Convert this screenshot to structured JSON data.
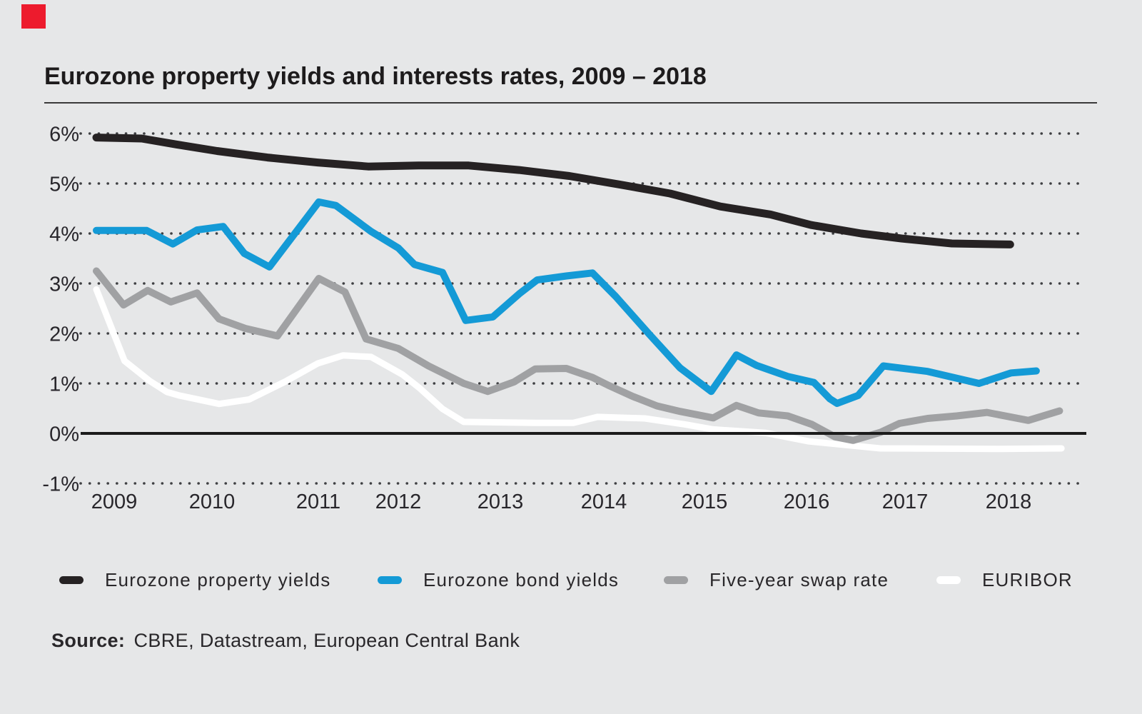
{
  "title": "Eurozone property yields and interests rates, 2009 – 2018",
  "brand": {
    "square_color": "#ed1b2d"
  },
  "source": {
    "label": "Source:",
    "text": "CBRE, Datastream, European Central Bank"
  },
  "chart_data": {
    "type": "line",
    "title": "Eurozone property yields and interests rates, 2009 – 2018",
    "background_color": "#e6e7e8",
    "grid": "horizontal dotted",
    "legend_position": "bottom",
    "ylabel": "",
    "xlabel": "",
    "y_unit": "%",
    "ylim": [
      -1,
      6
    ],
    "xlim": [
      2009,
      2018.6
    ],
    "y_tick_labels": [
      "6%",
      "5%",
      "4%",
      "3%",
      "2%",
      "1%",
      "0%",
      "-1%"
    ],
    "y_tick_values": [
      6,
      5,
      4,
      3,
      2,
      1,
      0,
      -1
    ],
    "zero_axis": true,
    "x_tick_labels": [
      "2009",
      "2010",
      "2011",
      "2012",
      "2013",
      "2014",
      "2015",
      "2016",
      "2017",
      "2018"
    ],
    "series": [
      {
        "name": "Eurozone property yields",
        "key": "property-yields",
        "color": "#262223",
        "stroke_width": 11,
        "points": [
          [
            2009.0,
            5.92
          ],
          [
            2009.45,
            5.9
          ],
          [
            2009.8,
            5.78
          ],
          [
            2010.2,
            5.65
          ],
          [
            2010.7,
            5.52
          ],
          [
            2011.2,
            5.42
          ],
          [
            2011.7,
            5.34
          ],
          [
            2012.2,
            5.36
          ],
          [
            2012.7,
            5.36
          ],
          [
            2013.2,
            5.27
          ],
          [
            2013.7,
            5.15
          ],
          [
            2014.2,
            4.98
          ],
          [
            2014.7,
            4.8
          ],
          [
            2015.2,
            4.54
          ],
          [
            2015.7,
            4.38
          ],
          [
            2016.1,
            4.17
          ],
          [
            2016.6,
            4.0
          ],
          [
            2017.0,
            3.9
          ],
          [
            2017.5,
            3.8
          ],
          [
            2018.08,
            3.78
          ]
        ]
      },
      {
        "name": "Eurozone bond yields",
        "key": "bond-yields",
        "color": "#149ad6",
        "stroke_width": 10,
        "points": [
          [
            2009.0,
            4.06
          ],
          [
            2009.5,
            4.06
          ],
          [
            2009.76,
            3.79
          ],
          [
            2010.0,
            4.07
          ],
          [
            2010.26,
            4.14
          ],
          [
            2010.47,
            3.6
          ],
          [
            2010.72,
            3.33
          ],
          [
            2011.21,
            4.63
          ],
          [
            2011.38,
            4.56
          ],
          [
            2011.73,
            4.04
          ],
          [
            2012.0,
            3.71
          ],
          [
            2012.16,
            3.38
          ],
          [
            2012.44,
            3.22
          ],
          [
            2012.67,
            2.26
          ],
          [
            2012.94,
            2.33
          ],
          [
            2013.2,
            2.79
          ],
          [
            2013.38,
            3.07
          ],
          [
            2013.67,
            3.15
          ],
          [
            2013.93,
            3.21
          ],
          [
            2014.16,
            2.74
          ],
          [
            2014.5,
            1.97
          ],
          [
            2014.8,
            1.31
          ],
          [
            2015.11,
            0.84
          ],
          [
            2015.36,
            1.57
          ],
          [
            2015.56,
            1.36
          ],
          [
            2015.87,
            1.14
          ],
          [
            2016.13,
            1.02
          ],
          [
            2016.29,
            0.69
          ],
          [
            2016.36,
            0.6
          ],
          [
            2016.57,
            0.76
          ],
          [
            2016.82,
            1.35
          ],
          [
            2017.26,
            1.24
          ],
          [
            2017.77,
            1.0
          ],
          [
            2018.09,
            1.21
          ],
          [
            2018.34,
            1.25
          ]
        ]
      },
      {
        "name": "Five-year swap rate",
        "key": "swap-rate",
        "color": "#a0a1a3",
        "stroke_width": 10,
        "points": [
          [
            2009.0,
            3.25
          ],
          [
            2009.27,
            2.57
          ],
          [
            2009.51,
            2.86
          ],
          [
            2009.74,
            2.63
          ],
          [
            2010.0,
            2.81
          ],
          [
            2010.22,
            2.29
          ],
          [
            2010.48,
            2.1
          ],
          [
            2010.8,
            1.95
          ],
          [
            2011.21,
            3.1
          ],
          [
            2011.47,
            2.83
          ],
          [
            2011.68,
            1.89
          ],
          [
            2012.0,
            1.7
          ],
          [
            2012.3,
            1.35
          ],
          [
            2012.65,
            1.0
          ],
          [
            2012.89,
            0.84
          ],
          [
            2013.15,
            1.03
          ],
          [
            2013.36,
            1.29
          ],
          [
            2013.67,
            1.3
          ],
          [
            2013.93,
            1.12
          ],
          [
            2014.09,
            0.96
          ],
          [
            2014.33,
            0.74
          ],
          [
            2014.57,
            0.55
          ],
          [
            2014.8,
            0.44
          ],
          [
            2015.13,
            0.31
          ],
          [
            2015.36,
            0.56
          ],
          [
            2015.58,
            0.41
          ],
          [
            2015.87,
            0.35
          ],
          [
            2016.11,
            0.18
          ],
          [
            2016.34,
            -0.07
          ],
          [
            2016.52,
            -0.14
          ],
          [
            2016.79,
            0.02
          ],
          [
            2016.98,
            0.2
          ],
          [
            2017.26,
            0.3
          ],
          [
            2017.55,
            0.35
          ],
          [
            2017.85,
            0.42
          ],
          [
            2018.26,
            0.26
          ],
          [
            2018.57,
            0.45
          ]
        ]
      },
      {
        "name": "EURIBOR",
        "key": "euribor",
        "color": "#ffffff",
        "stroke_width": 9,
        "points": [
          [
            2009.0,
            2.88
          ],
          [
            2009.28,
            1.45
          ],
          [
            2009.53,
            1.05
          ],
          [
            2009.7,
            0.83
          ],
          [
            2009.82,
            0.76
          ],
          [
            2010.22,
            0.59
          ],
          [
            2010.52,
            0.68
          ],
          [
            2010.88,
            1.04
          ],
          [
            2011.2,
            1.4
          ],
          [
            2011.45,
            1.56
          ],
          [
            2011.73,
            1.53
          ],
          [
            2012.04,
            1.18
          ],
          [
            2012.21,
            0.91
          ],
          [
            2012.44,
            0.49
          ],
          [
            2012.65,
            0.23
          ],
          [
            2013.36,
            0.21
          ],
          [
            2013.74,
            0.21
          ],
          [
            2013.98,
            0.33
          ],
          [
            2014.45,
            0.3
          ],
          [
            2014.85,
            0.18
          ],
          [
            2015.13,
            0.08
          ],
          [
            2015.65,
            0.01
          ],
          [
            2016.08,
            -0.16
          ],
          [
            2016.79,
            -0.3
          ],
          [
            2017.97,
            -0.31
          ],
          [
            2018.59,
            -0.3
          ]
        ]
      }
    ]
  }
}
